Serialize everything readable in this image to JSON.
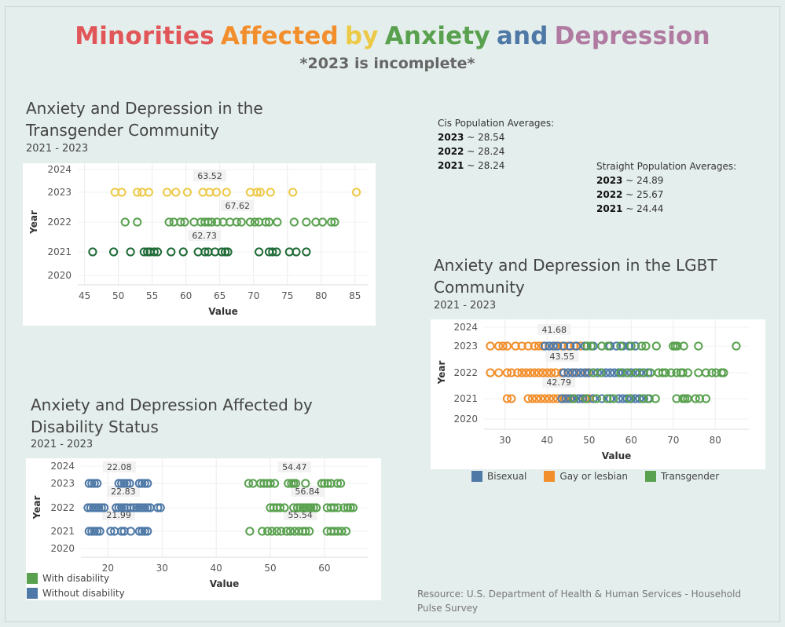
{
  "title_words": [
    {
      "text": "Minorities",
      "color": "#e15759"
    },
    {
      "text": "Affected",
      "color": "#f28e2b"
    },
    {
      "text": "by",
      "color": "#edc948"
    },
    {
      "text": "Anxiety",
      "color": "#59a14f"
    },
    {
      "text": "and",
      "color": "#4e79a7"
    },
    {
      "text": "Depression",
      "color": "#b07aa1"
    }
  ],
  "subtitle": "*2023 is incomplete*",
  "cis_averages": {
    "heading": "Cis Population Averages:",
    "rows": [
      {
        "year": "2023",
        "value": " ~ 28.54"
      },
      {
        "year": "2022",
        "value": " ~ 28.24"
      },
      {
        "year": "2021",
        "value": " ~ 28.24"
      }
    ]
  },
  "straight_averages": {
    "heading": "Straight Population Averages:",
    "rows": [
      {
        "year": "2023",
        "value": " ~ 24.89"
      },
      {
        "year": "2022",
        "value": " ~ 25.67"
      },
      {
        "year": "2021",
        "value": " ~ 24.44"
      }
    ]
  },
  "legend_lgbt": [
    {
      "label": "Bisexual",
      "color": "#4e79a7"
    },
    {
      "label": "Gay or lesbian",
      "color": "#f28e2b"
    },
    {
      "label": "Transgender",
      "color": "#59a14f"
    }
  ],
  "legend_disability": [
    {
      "label": "With disability",
      "color": "#59a14f"
    },
    {
      "label": "Without disability",
      "color": "#4e79a7"
    }
  ],
  "source": "Resource: U.S. Department of Health & Human Services - Household Pulse Survey",
  "chart_data": [
    {
      "type": "scatter",
      "title": "Anxiety and Depression in the Transgender Community",
      "subtitle": "2021 - 2023",
      "xlabel": "Value",
      "ylabel": "Year",
      "xlim": [
        44,
        87
      ],
      "xticks": [
        45,
        50,
        55,
        60,
        65,
        70,
        75,
        80,
        85
      ],
      "years": [
        "2024",
        "2023",
        "2022",
        "2021",
        "2020"
      ],
      "series": [
        {
          "year": "2023",
          "color": "#edc948",
          "values": [
            49.5,
            50.5,
            52.8,
            53.5,
            54.5,
            57.2,
            58.5,
            60.2,
            62.5,
            63.5,
            64.5,
            66,
            69.5,
            70.5,
            71,
            72.5,
            75.8,
            85.2
          ]
        },
        {
          "year": "2022",
          "color": "#59a14f",
          "values": [
            51,
            52.8,
            57.5,
            58.2,
            59.2,
            59.8,
            61.2,
            62.2,
            62.8,
            63.3,
            63.8,
            64.6,
            65.5,
            66.5,
            67.5,
            68.2,
            69.5,
            70.2,
            70.8,
            71.8,
            72.3,
            73.5,
            76,
            77.8,
            79.2,
            80.2,
            81.5,
            82
          ]
        },
        {
          "year": "2021",
          "color": "#1f6b37",
          "values": [
            46.2,
            49.3,
            51.8,
            53.8,
            54.3,
            54.7,
            55.3,
            55.8,
            57.8,
            59.6,
            61.8,
            62.8,
            63.3,
            64.3,
            65.3,
            65.8,
            66.2,
            70.8,
            72.3,
            72.8,
            73.4,
            75.3,
            76.3,
            77.8
          ]
        }
      ],
      "labels": [
        {
          "year": "2023",
          "text": "63.52",
          "x": 63.52
        },
        {
          "year": "2022",
          "text": "67.62",
          "x": 67.62
        },
        {
          "year": "2021",
          "text": "62.73",
          "x": 62.73
        }
      ]
    },
    {
      "type": "scatter",
      "title": "Anxiety and Depression in the LGBT Community",
      "subtitle": "2021 - 2023",
      "xlabel": "Value",
      "ylabel": "Year",
      "xlim": [
        25,
        88
      ],
      "xticks": [
        30,
        40,
        50,
        60,
        70,
        80
      ],
      "years": [
        "2024",
        "2023",
        "2022",
        "2021",
        "2020"
      ],
      "series": [
        {
          "name": "Gay or lesbian",
          "year": "2023",
          "color": "#f28e2b",
          "values": [
            26.5,
            28.5,
            29.5,
            30.5,
            32.5,
            34,
            35.5,
            37,
            38,
            39,
            40.5,
            42,
            43.5,
            45,
            46.5,
            48
          ]
        },
        {
          "name": "Bisexual",
          "year": "2023",
          "color": "#4e79a7",
          "values": [
            39.5,
            40.5,
            41.5,
            42.5,
            44,
            45.5,
            47,
            49,
            51,
            53,
            55,
            56.5,
            58,
            59.5,
            61
          ]
        },
        {
          "name": "Transgender",
          "year": "2023",
          "color": "#59a14f",
          "values": [
            49.5,
            50.5,
            53,
            54.5,
            57.5,
            60,
            62.5,
            63.5,
            66,
            70,
            70.5,
            71,
            72.5,
            76,
            85
          ]
        },
        {
          "name": "Gay or lesbian",
          "year": "2022",
          "color": "#f28e2b",
          "values": [
            26.5,
            28.5,
            30.5,
            31.5,
            33,
            34,
            35,
            36,
            37,
            38,
            39,
            40,
            41,
            42,
            43.5,
            45,
            46.5,
            48,
            49.5,
            51
          ]
        },
        {
          "name": "Bisexual",
          "year": "2022",
          "color": "#4e79a7",
          "values": [
            44,
            45,
            46,
            47,
            48,
            49,
            50,
            51,
            52,
            53,
            54,
            55,
            56,
            57,
            58,
            59,
            60,
            61,
            62,
            63,
            64
          ]
        },
        {
          "name": "Transgender",
          "year": "2022",
          "color": "#59a14f",
          "values": [
            51,
            52.8,
            57.5,
            59.2,
            61.2,
            62.8,
            64.6,
            66.5,
            67.5,
            68.2,
            69.5,
            70.8,
            71.8,
            72.3,
            73.5,
            76,
            77.8,
            79.2,
            80.2,
            81.5,
            82
          ]
        },
        {
          "name": "Gay or lesbian",
          "year": "2021",
          "color": "#f28e2b",
          "values": [
            30.5,
            31.5,
            35.5,
            36.5,
            37.5,
            38.5,
            39.5,
            40.5,
            41.5,
            42.5,
            44,
            45,
            46,
            47.5,
            49,
            50
          ]
        },
        {
          "name": "Bisexual",
          "year": "2021",
          "color": "#4e79a7",
          "values": [
            43.5,
            44.5,
            45.5,
            46.5,
            47.5,
            48.5,
            49.5,
            51,
            53,
            55,
            57,
            58,
            59,
            60,
            61,
            62,
            63,
            64
          ]
        },
        {
          "name": "Transgender",
          "year": "2021",
          "color": "#59a14f",
          "values": [
            46.2,
            49.3,
            51.8,
            54.3,
            55.8,
            59.6,
            62.8,
            64.3,
            65.8,
            70.8,
            72.3,
            72.8,
            73.4,
            75.3,
            76.3,
            77.8
          ]
        }
      ],
      "labels": [
        {
          "year": "2023",
          "text": "41.68",
          "x": 41.68
        },
        {
          "year": "2022",
          "text": "43.55",
          "x": 43.55
        },
        {
          "year": "2021",
          "text": "42.79",
          "x": 42.79
        }
      ]
    },
    {
      "type": "scatter",
      "title": "Anxiety and Depression Affected by Disability Status",
      "subtitle": "2021 - 2023",
      "xlabel": "Value",
      "ylabel": "Year",
      "xlim": [
        15,
        68
      ],
      "xticks": [
        20,
        30,
        40,
        50,
        60
      ],
      "years": [
        "2024",
        "2023",
        "2022",
        "2021",
        "2020"
      ],
      "series": [
        {
          "name": "Without disability",
          "year": "2023",
          "color": "#4e79a7",
          "values": [
            16.5,
            17,
            17.5,
            18,
            22,
            22.5,
            23,
            23.5,
            24,
            25.8,
            26.3,
            26.8,
            27.3
          ]
        },
        {
          "name": "With disability",
          "year": "2023",
          "color": "#59a14f",
          "values": [
            46,
            46.8,
            48.2,
            48.8,
            49.4,
            50,
            50.8,
            53.3,
            53.9,
            54.3,
            54.7,
            56.5,
            59.5,
            60,
            60.6,
            61.2,
            62.4,
            63
          ]
        },
        {
          "name": "Without disability",
          "year": "2022",
          "color": "#4e79a7",
          "values": [
            16.3,
            16.8,
            17.3,
            17.8,
            18.3,
            18.8,
            19.3,
            21.5,
            22,
            22.5,
            23,
            23.5,
            24.2,
            24.8,
            25.3,
            25.8,
            26.3,
            26.8,
            27.3,
            27.8,
            29.2,
            29.7
          ]
        },
        {
          "name": "With disability",
          "year": "2022",
          "color": "#59a14f",
          "values": [
            50,
            50.6,
            51.2,
            51.8,
            52.6,
            54.3,
            55,
            55.5,
            56,
            56.5,
            57,
            57.5,
            58,
            58.5,
            60.5,
            61.2,
            61.8,
            62.5,
            63.6,
            64.3,
            64.8,
            65.3
          ]
        },
        {
          "name": "Without disability",
          "year": "2021",
          "color": "#4e79a7",
          "values": [
            16.5,
            17,
            17.5,
            18,
            18.5,
            20.5,
            21.2,
            22.5,
            23,
            24.2,
            25.8,
            26.3,
            26.8,
            27.3
          ]
        },
        {
          "name": "With disability",
          "year": "2021",
          "color": "#59a14f",
          "values": [
            46.2,
            48.5,
            49.5,
            50.3,
            51.2,
            52,
            53,
            53.7,
            54.5,
            55.3,
            56,
            56.5,
            57.2,
            60.5,
            61.2,
            61.8,
            62.5,
            63.2,
            64
          ]
        }
      ],
      "labels": [
        {
          "year": "2023",
          "text": "22.08",
          "x": 22.08
        },
        {
          "year": "2023",
          "text": "54.47",
          "x": 54.47
        },
        {
          "year": "2022",
          "text": "22.83",
          "x": 22.83
        },
        {
          "year": "2022",
          "text": "56.84",
          "x": 56.84
        },
        {
          "year": "2021",
          "text": "21.99",
          "x": 21.99
        },
        {
          "year": "2021",
          "text": "55.54",
          "x": 55.54
        }
      ]
    }
  ]
}
